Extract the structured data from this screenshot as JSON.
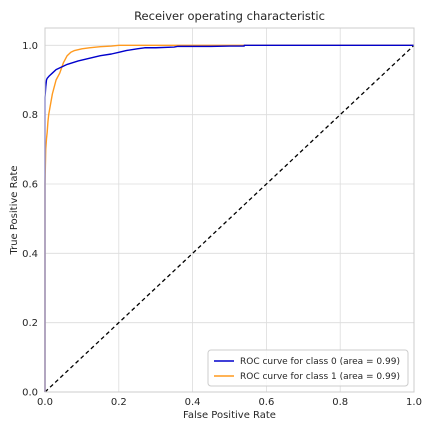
{
  "chart_data": {
    "type": "line",
    "title": "Receiver operating characteristic",
    "xlabel": "False Positive Rate",
    "ylabel": "True Positive Rate",
    "xlim": [
      0.0,
      1.0
    ],
    "ylim": [
      0.0,
      1.05
    ],
    "x_ticks": [
      "0.0",
      "0.2",
      "0.4",
      "0.6",
      "0.8",
      "1.0"
    ],
    "y_ticks": [
      "0.0",
      "0.2",
      "0.4",
      "0.6",
      "0.8",
      "1.0"
    ],
    "grid": true,
    "legend_position": "bottom-right",
    "series": [
      {
        "name": "ROC curve for class 0 (area = 0.99)",
        "color": "#0000cc",
        "x": [
          0.0,
          0.0,
          0.002,
          0.004,
          0.006,
          0.01,
          0.015,
          0.02,
          0.03,
          0.04,
          0.05,
          0.06,
          0.075,
          0.09,
          0.11,
          0.13,
          0.15,
          0.18,
          0.2,
          0.22,
          0.25,
          0.27,
          0.3,
          0.35,
          0.36,
          0.4,
          0.45,
          0.5,
          0.54,
          0.54,
          1.0
        ],
        "y": [
          0.0,
          0.85,
          0.88,
          0.9,
          0.905,
          0.91,
          0.915,
          0.92,
          0.93,
          0.935,
          0.94,
          0.945,
          0.95,
          0.955,
          0.96,
          0.965,
          0.97,
          0.975,
          0.98,
          0.985,
          0.99,
          0.993,
          0.993,
          0.995,
          0.997,
          0.997,
          0.997,
          0.998,
          0.998,
          1.0,
          1.0
        ]
      },
      {
        "name": "ROC curve for class 1 (area = 0.99)",
        "color": "#ff9a1f",
        "x": [
          0.0,
          0.0,
          0.002,
          0.004,
          0.006,
          0.008,
          0.01,
          0.015,
          0.02,
          0.025,
          0.03,
          0.04,
          0.05,
          0.06,
          0.07,
          0.08,
          0.1,
          0.12,
          0.15,
          0.18,
          0.2,
          0.25,
          1.0
        ],
        "y": [
          0.0,
          0.6,
          0.7,
          0.73,
          0.75,
          0.78,
          0.8,
          0.83,
          0.86,
          0.88,
          0.9,
          0.92,
          0.95,
          0.97,
          0.98,
          0.985,
          0.99,
          0.993,
          0.996,
          0.998,
          1.0,
          1.0,
          1.0
        ]
      },
      {
        "name": "",
        "color": "#000000",
        "dashed": true,
        "x": [
          0.0,
          1.0
        ],
        "y": [
          0.0,
          1.0
        ]
      }
    ]
  }
}
